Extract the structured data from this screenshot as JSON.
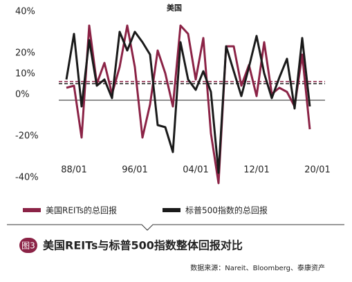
{
  "chart_data": {
    "type": "line",
    "title": "美国",
    "x": [
      1987,
      1988,
      1989,
      1990,
      1991,
      1992,
      1993,
      1994,
      1995,
      1996,
      1997,
      1998,
      1999,
      2000,
      2001,
      2002,
      2003,
      2004,
      2005,
      2006,
      2007,
      2008,
      2009,
      2010,
      2011,
      2012,
      2013,
      2014,
      2015,
      2016,
      2017,
      2018,
      2019
    ],
    "series": [
      {
        "name": "美国REITs的总回报",
        "color": "#8b2346",
        "values": [
          6,
          7,
          -18,
          36,
          8,
          18,
          3,
          16,
          36,
          16,
          -18,
          -2,
          24,
          13,
          -3,
          36,
          32,
          10,
          30,
          -16,
          -40,
          26,
          26,
          7,
          17,
          2,
          28,
          3,
          6,
          4,
          -3,
          22,
          -14
        ]
      },
      {
        "name": "标普500指数的总回报",
        "color": "#1a1a1a",
        "values": [
          10,
          32,
          -3,
          29,
          7,
          10,
          1,
          33,
          24,
          33,
          28,
          22,
          -12,
          -13,
          -25,
          28,
          10,
          5,
          14,
          4,
          -35,
          26,
          14,
          2,
          16,
          31,
          13,
          1,
          11,
          20,
          -4,
          30,
          -3
        ]
      }
    ],
    "average_lines": [
      {
        "value": 9,
        "color": "#8b2346"
      },
      {
        "value": 8,
        "color": "#1a1a1a"
      }
    ],
    "xlim": [
      1986,
      2021
    ],
    "xticks": [
      {
        "value": 1988,
        "label": "88/01"
      },
      {
        "value": 1996,
        "label": "96/01"
      },
      {
        "value": 2004,
        "label": "04/01"
      },
      {
        "value": 2012,
        "label": "12/01"
      },
      {
        "value": 2020,
        "label": "20/01"
      }
    ],
    "ylim": [
      -45,
      45
    ],
    "yticks": [
      {
        "value": 40,
        "label": "40%"
      },
      {
        "value": 20,
        "label": "20%"
      },
      {
        "value": 10,
        "label": "10%"
      },
      {
        "value": 0,
        "label": "0%"
      },
      {
        "value": -20,
        "label": "-20%"
      },
      {
        "value": -40,
        "label": "-40%"
      }
    ],
    "figure_label": "图3",
    "caption": "美国REITs与标普500指数整体回报对比",
    "source": "数据来源：Nareit、Bloomberg、泰康资产"
  }
}
